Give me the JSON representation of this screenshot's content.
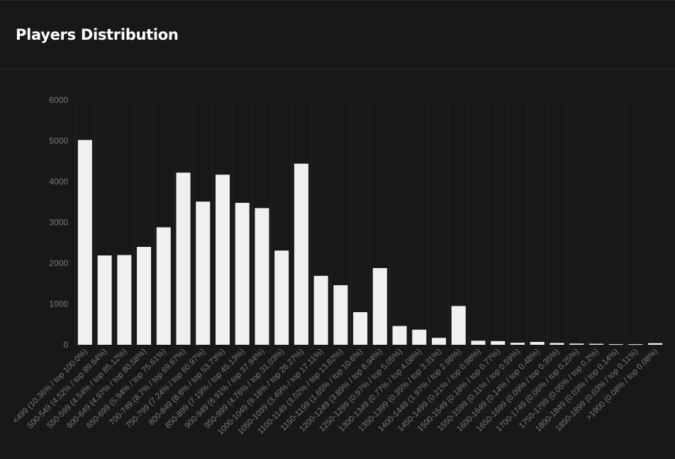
{
  "header": {
    "title": "Players Distribution"
  },
  "colors": {
    "background": "#18181a",
    "bar": "#f0f0f0",
    "tick_text": "#7a7a7e",
    "gridline": "#232326"
  },
  "chart_data": {
    "type": "bar",
    "title": "",
    "xlabel": "",
    "ylabel": "",
    "ylim": [
      0,
      6000
    ],
    "yticks": [
      0,
      1000,
      2000,
      3000,
      4000,
      5000,
      6000
    ],
    "grid": true,
    "legend": "none",
    "categories": [
      "<499 (10.36% / top 100.0%)",
      "500-549 (4.52% / top 89.64%)",
      "550-599 (4.54% / top 85.12%)",
      "600-649 (4.97% / top 80.58%)",
      "650-699 (5.94% / top 75.61%)",
      "700-749 (8.7% / top 69.67%)",
      "750-799 (7.24% / top 60.97%)",
      "800-849 (8.6% / top 53.73%)",
      "850-899 (7.19% / top 45.13%)",
      "900-949 (6.91% / top 37.94%)",
      "950-999 (4.76% / top 31.03%)",
      "1000-1049 (9.16% / top 26.27%)",
      "1050-1099 (3.49% / top 17.11%)",
      "1100-1149 (3.02% / top 13.62%)",
      "1150-1199 (1.65% / top 10.6%)",
      "1200-1249 (3.89% / top 8.94%)",
      "1250-1299 (0.97% / top 5.05%)",
      "1300-1349 (0.77% / top 4.08%)",
      "1350-1399 (0.35% / top 3.31%)",
      "1400-1449 (1.97% / top 2.96%)",
      "1450-1499 (0.21% / top 0.98%)",
      "1500-1549 (0.18% / top 0.77%)",
      "1550-1599 (0.11% / top 0.59%)",
      "1600-1649 (0.14% / top 0.48%)",
      "1650-1699 (0.09% / top 0.35%)",
      "1700-1749 (0.06% / top 0.25%)",
      "1750-1799 (0.05% / top 0.2%)",
      "1800-1849 (0.03% / top 0.14%)",
      "1850-1899 (0.03% / top 0.11%)",
      ">1900 (0.08% / top 0.08%)"
    ],
    "values": [
      5020,
      2190,
      2200,
      2400,
      2880,
      4220,
      3510,
      4170,
      3480,
      3350,
      2310,
      4440,
      1690,
      1460,
      800,
      1880,
      460,
      370,
      170,
      950,
      100,
      90,
      50,
      70,
      45,
      30,
      25,
      15,
      15,
      40
    ]
  }
}
